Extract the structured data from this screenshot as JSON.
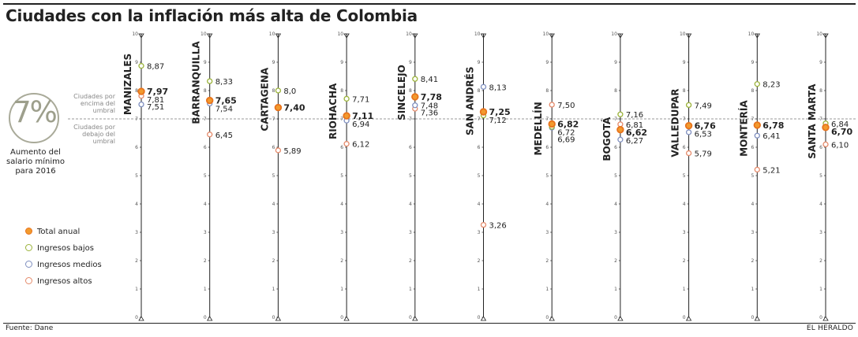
{
  "title": "Ciudades con la inflación más alta de Colombia",
  "source": "Fuente: Dane",
  "brand": "EL HERALDO",
  "threshold": {
    "value_label": "7%",
    "value": 7,
    "caption": "Aumento del salario mínimo para 2016",
    "above_label": "Ciudades por encima del umbral",
    "below_label": "Ciudades por debajo del umbral"
  },
  "legend": [
    {
      "key": "total",
      "label": "Total anual",
      "color": "#e8731c",
      "fill": "#f29a2e"
    },
    {
      "key": "bajos",
      "label": "Ingresos bajos",
      "color": "#9bb33a",
      "fill": "#ffffff"
    },
    {
      "key": "medios",
      "label": "Ingresos medios",
      "color": "#7f8fbf",
      "fill": "#ffffff"
    },
    {
      "key": "altos",
      "label": "Ingresos altos",
      "color": "#e58a6a",
      "fill": "#ffffff"
    }
  ],
  "chart_data": {
    "type": "scatter",
    "title": "Ciudades con la inflación más alta de Colombia",
    "ylim": [
      0,
      10
    ],
    "yticks": [
      "0",
      "1",
      "2",
      "3",
      "4",
      "5",
      "6",
      "7",
      "8",
      "9",
      "10"
    ],
    "threshold": 7,
    "cities": [
      {
        "name": "MANIZALES",
        "total": 7.97,
        "bajos": 8.87,
        "medios": 7.51,
        "altos": 7.81,
        "labels": {
          "total": "7,97",
          "bajos": "8,87",
          "medios": "7,51",
          "altos": "7,81"
        }
      },
      {
        "name": "BARRANQUILLA",
        "total": 7.65,
        "bajos": 8.33,
        "medios": 7.54,
        "altos": 6.45,
        "labels": {
          "total": "7,65",
          "bajos": "8,33",
          "medios": "7,54",
          "altos": "6,45"
        }
      },
      {
        "name": "CARTAGENA",
        "total": 7.4,
        "bajos": 8.0,
        "medios": 7.4,
        "altos": 5.89,
        "labels": {
          "total": "7,40",
          "bajos": "8,0",
          "medios": "",
          "altos": "5,89"
        }
      },
      {
        "name": "RIOHACHA",
        "total": 7.11,
        "bajos": 7.71,
        "medios": 6.94,
        "altos": 6.12,
        "labels": {
          "total": "7,11",
          "bajos": "7,71",
          "medios": "6,94",
          "altos": "6,12"
        }
      },
      {
        "name": "SINCELEJO",
        "total": 7.78,
        "bajos": 8.41,
        "medios": 7.48,
        "altos": 7.36,
        "labels": {
          "total": "7,78",
          "bajos": "8,41",
          "medios": "7,48",
          "altos": "7,36"
        }
      },
      {
        "name": "SAN ANDRÉS",
        "total": 7.25,
        "bajos": 7.12,
        "medios": 8.13,
        "altos": 3.26,
        "labels": {
          "total": "7,25",
          "bajos": "7,12",
          "medios": "8,13",
          "altos": "3,26"
        }
      },
      {
        "name": "MEDELLÍN",
        "total": 6.82,
        "bajos": 6.72,
        "medios": 6.69,
        "altos": 7.5,
        "labels": {
          "total": "6,82",
          "bajos": "6,72",
          "medios": "6,69",
          "altos": "7,50"
        }
      },
      {
        "name": "BOGOTÁ",
        "total": 6.62,
        "bajos": 7.16,
        "medios": 6.27,
        "altos": 6.81,
        "labels": {
          "total": "6,62",
          "bajos": "7,16",
          "medios": "6,27",
          "altos": "6,81"
        }
      },
      {
        "name": "VALLEDUPAR",
        "total": 6.76,
        "bajos": 7.49,
        "medios": 6.53,
        "altos": 5.79,
        "labels": {
          "total": "6,76",
          "bajos": "7,49",
          "medios": "6,53",
          "altos": "5,79"
        }
      },
      {
        "name": "MONTERÍA",
        "total": 6.78,
        "bajos": 8.23,
        "medios": 6.41,
        "altos": 5.21,
        "labels": {
          "total": "6,78",
          "bajos": "8,23",
          "medios": "6,41",
          "altos": "5,21"
        }
      },
      {
        "name": "SANTA MARTA",
        "total": 6.7,
        "bajos": 6.84,
        "medios": 6.7,
        "altos": 6.1,
        "labels": {
          "total": "6,70",
          "bajos": "6,84",
          "medios": "",
          "altos": "6,10"
        }
      }
    ]
  }
}
